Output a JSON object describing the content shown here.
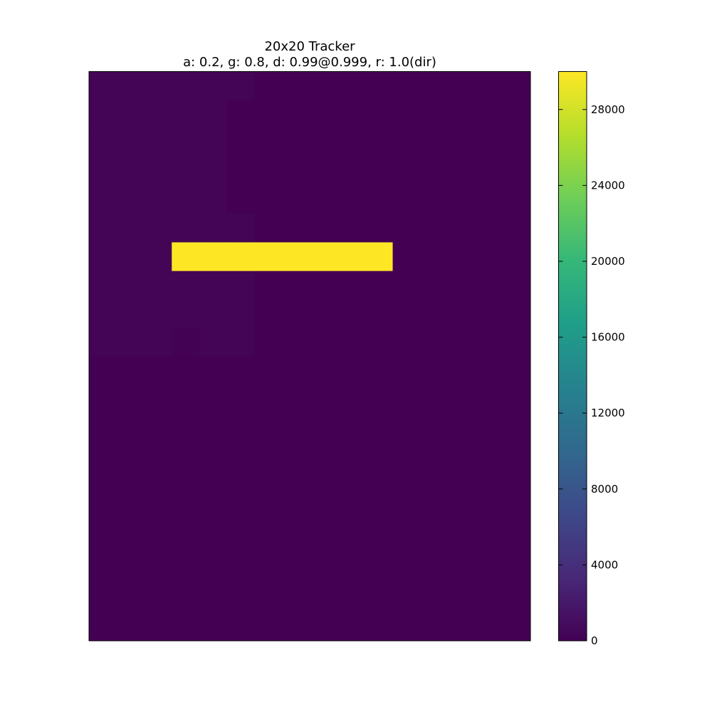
{
  "chart_data": {
    "type": "heatmap",
    "title": "20x20 Tracker",
    "subtitle": "a: 0.2, g: 0.8, d: 0.99@0.999, r: 1.0(dir)",
    "grid_cols": 16,
    "grid_rows": 20,
    "colormap": "viridis",
    "colormap_stops": [
      "#440154",
      "#482878",
      "#3e4989",
      "#31688e",
      "#26828e",
      "#1f9e89",
      "#35b779",
      "#6ece58",
      "#b5de2b",
      "#fde725"
    ],
    "background_value": 0,
    "value_range": [
      0,
      30000
    ],
    "colorbar_ticks": [
      "0",
      "4000",
      "8000",
      "12000",
      "16000",
      "20000",
      "24000",
      "28000"
    ],
    "colorbar_tick_values": [
      0,
      4000,
      8000,
      12000,
      16000,
      20000,
      24000,
      28000
    ],
    "cells": [
      {
        "row": 6,
        "col": 3,
        "value": 30000
      },
      {
        "row": 6,
        "col": 4,
        "value": 30000
      },
      {
        "row": 6,
        "col": 5,
        "value": 30000
      },
      {
        "row": 6,
        "col": 6,
        "value": 30000
      },
      {
        "row": 6,
        "col": 7,
        "value": 30000
      },
      {
        "row": 6,
        "col": 8,
        "value": 30000
      },
      {
        "row": 6,
        "col": 9,
        "value": 30000
      },
      {
        "row": 6,
        "col": 10,
        "value": 30000
      },
      {
        "row": 0,
        "col": 0,
        "value": 300
      },
      {
        "row": 0,
        "col": 1,
        "value": 300
      },
      {
        "row": 0,
        "col": 2,
        "value": 300
      },
      {
        "row": 0,
        "col": 3,
        "value": 300
      },
      {
        "row": 0,
        "col": 4,
        "value": 300
      },
      {
        "row": 0,
        "col": 5,
        "value": 300
      },
      {
        "row": 1,
        "col": 0,
        "value": 300
      },
      {
        "row": 1,
        "col": 1,
        "value": 300
      },
      {
        "row": 1,
        "col": 2,
        "value": 300
      },
      {
        "row": 1,
        "col": 3,
        "value": 300
      },
      {
        "row": 1,
        "col": 4,
        "value": 300
      },
      {
        "row": 2,
        "col": 0,
        "value": 300
      },
      {
        "row": 2,
        "col": 1,
        "value": 300
      },
      {
        "row": 2,
        "col": 2,
        "value": 300
      },
      {
        "row": 2,
        "col": 3,
        "value": 300
      },
      {
        "row": 2,
        "col": 4,
        "value": 300
      },
      {
        "row": 3,
        "col": 0,
        "value": 300
      },
      {
        "row": 3,
        "col": 1,
        "value": 300
      },
      {
        "row": 3,
        "col": 2,
        "value": 300
      },
      {
        "row": 3,
        "col": 3,
        "value": 300
      },
      {
        "row": 3,
        "col": 4,
        "value": 300
      },
      {
        "row": 4,
        "col": 0,
        "value": 300
      },
      {
        "row": 4,
        "col": 1,
        "value": 300
      },
      {
        "row": 4,
        "col": 2,
        "value": 300
      },
      {
        "row": 4,
        "col": 3,
        "value": 300
      },
      {
        "row": 4,
        "col": 4,
        "value": 300
      },
      {
        "row": 5,
        "col": 0,
        "value": 300
      },
      {
        "row": 5,
        "col": 1,
        "value": 300
      },
      {
        "row": 5,
        "col": 2,
        "value": 300
      },
      {
        "row": 5,
        "col": 3,
        "value": 300
      },
      {
        "row": 5,
        "col": 4,
        "value": 300
      },
      {
        "row": 5,
        "col": 5,
        "value": 300
      },
      {
        "row": 6,
        "col": 0,
        "value": 300
      },
      {
        "row": 6,
        "col": 1,
        "value": 300
      },
      {
        "row": 6,
        "col": 2,
        "value": 300
      },
      {
        "row": 7,
        "col": 0,
        "value": 300
      },
      {
        "row": 7,
        "col": 1,
        "value": 300
      },
      {
        "row": 7,
        "col": 2,
        "value": 300
      },
      {
        "row": 7,
        "col": 3,
        "value": 300
      },
      {
        "row": 7,
        "col": 4,
        "value": 300
      },
      {
        "row": 7,
        "col": 5,
        "value": 300
      },
      {
        "row": 8,
        "col": 0,
        "value": 300
      },
      {
        "row": 8,
        "col": 1,
        "value": 300
      },
      {
        "row": 8,
        "col": 2,
        "value": 300
      },
      {
        "row": 8,
        "col": 3,
        "value": 300
      },
      {
        "row": 8,
        "col": 4,
        "value": 300
      },
      {
        "row": 8,
        "col": 5,
        "value": 300
      },
      {
        "row": 9,
        "col": 0,
        "value": 300
      },
      {
        "row": 9,
        "col": 1,
        "value": 300
      },
      {
        "row": 9,
        "col": 2,
        "value": 300
      },
      {
        "row": 9,
        "col": 3,
        "value": 100
      },
      {
        "row": 9,
        "col": 4,
        "value": 300
      },
      {
        "row": 9,
        "col": 5,
        "value": 300
      }
    ]
  }
}
